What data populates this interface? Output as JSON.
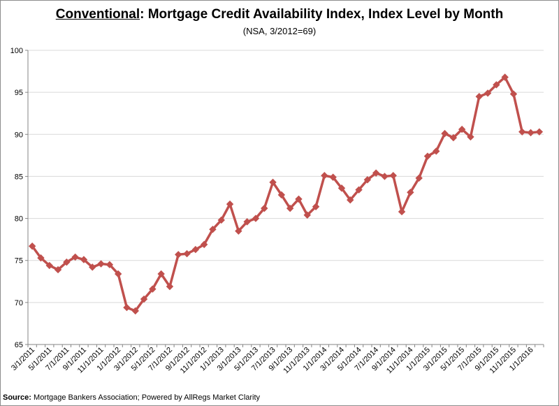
{
  "title_prefix": "Conventional",
  "title_rest": ": Mortgage Credit Availability Index, Index Level by Month",
  "subtitle": "(NSA, 3/2012=69)",
  "source_label": "Source:",
  "source_text": " Mortgage Bankers Association; Powered by AllRegs Market Clarity",
  "colors": {
    "series": "#C0504D",
    "axis": "#868686",
    "gridline": "#d9d9d9"
  },
  "chart_data": {
    "type": "line",
    "title": "Conventional: Mortgage Credit Availability Index, Index Level by Month",
    "subtitle": "(NSA, 3/2012=69)",
    "xlabel": "",
    "ylabel": "",
    "ylim": [
      65,
      100
    ],
    "yticks": [
      65,
      70,
      75,
      80,
      85,
      90,
      95,
      100
    ],
    "grid": {
      "y": true,
      "x": false
    },
    "x": [
      "3/1/2011",
      "4/1/2011",
      "5/1/2011",
      "6/1/2011",
      "7/1/2011",
      "8/1/2011",
      "9/1/2011",
      "10/1/2011",
      "11/1/2011",
      "12/1/2011",
      "1/1/2012",
      "2/1/2012",
      "3/1/2012",
      "4/1/2012",
      "5/1/2012",
      "6/1/2012",
      "7/1/2012",
      "8/1/2012",
      "9/1/2012",
      "10/1/2012",
      "11/1/2012",
      "12/1/2012",
      "1/1/2013",
      "2/1/2013",
      "3/1/2013",
      "4/1/2013",
      "5/1/2013",
      "6/1/2013",
      "7/1/2013",
      "8/1/2013",
      "9/1/2013",
      "10/1/2013",
      "11/1/2013",
      "12/1/2013",
      "1/1/2014",
      "2/1/2014",
      "3/1/2014",
      "4/1/2014",
      "5/1/2014",
      "6/1/2014",
      "7/1/2014",
      "8/1/2014",
      "9/1/2014",
      "10/1/2014",
      "11/1/2014",
      "12/1/2014",
      "1/1/2015",
      "2/1/2015",
      "3/1/2015",
      "4/1/2015",
      "5/1/2015",
      "6/1/2015",
      "7/1/2015",
      "8/1/2015",
      "9/1/2015",
      "10/1/2015",
      "11/1/2015",
      "12/1/2015",
      "1/1/2016",
      "2/1/2016"
    ],
    "xtick_labels": [
      "3/1/2011",
      "5/1/2011",
      "7/1/2011",
      "9/1/2011",
      "11/1/2011",
      "1/1/2012",
      "3/1/2012",
      "5/1/2012",
      "7/1/2012",
      "9/1/2012",
      "11/1/2012",
      "1/1/2013",
      "3/1/2013",
      "5/1/2013",
      "7/1/2013",
      "9/1/2013",
      "11/1/2013",
      "1/1/2014",
      "3/1/2014",
      "5/1/2014",
      "7/1/2014",
      "9/1/2014",
      "11/1/2014",
      "1/1/2015",
      "3/1/2015",
      "5/1/2015",
      "7/1/2015",
      "9/1/2015",
      "11/1/2015",
      "1/1/2016"
    ],
    "series": [
      {
        "values": [
          76.7,
          75.3,
          74.4,
          73.9,
          74.8,
          75.4,
          75.1,
          74.2,
          74.6,
          74.5,
          73.4,
          69.4,
          69.0,
          70.4,
          71.6,
          73.4,
          71.9,
          75.7,
          75.8,
          76.3,
          76.9,
          78.7,
          79.8,
          81.7,
          78.5,
          79.6,
          80.0,
          81.2,
          84.3,
          82.8,
          81.2,
          82.3,
          80.4,
          81.4,
          85.1,
          84.9,
          83.6,
          82.2,
          83.4,
          84.6,
          85.4,
          85.0,
          85.1,
          80.8,
          83.1,
          84.8,
          87.4,
          88.0,
          90.1,
          89.6,
          90.6,
          89.7,
          94.5,
          94.9,
          95.9,
          96.8,
          94.8,
          90.3,
          90.2,
          90.3
        ]
      }
    ]
  }
}
